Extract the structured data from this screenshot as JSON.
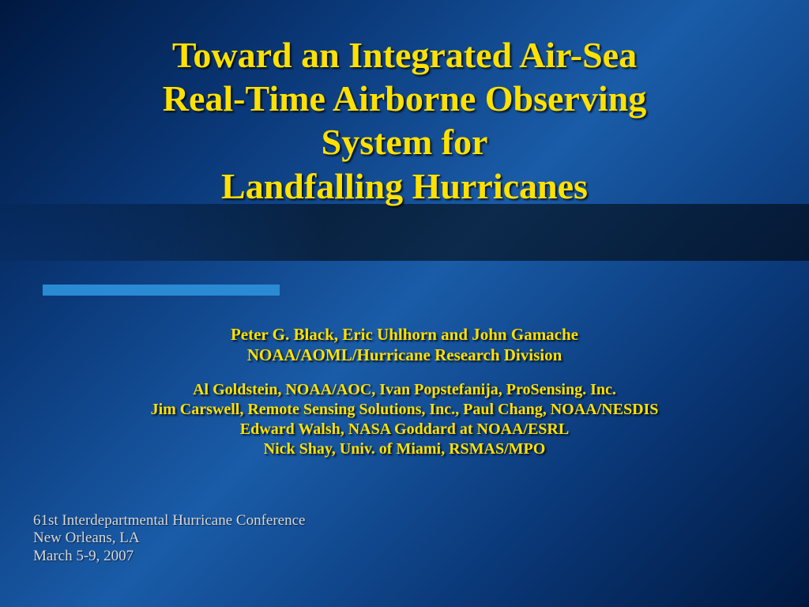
{
  "title": {
    "line1": "Toward an Integrated Air-Sea",
    "line2": "Real-Time Airborne Observing",
    "line3": "System for",
    "line4": "Landfalling Hurricanes"
  },
  "authors": {
    "group1_line1": "Peter G. Black, Eric Uhlhorn and John Gamache",
    "group1_line2": "NOAA/AOML/Hurricane Research Division",
    "group2_line1": "Al Goldstein, NOAA/AOC, Ivan Popstefanija, ProSensing. Inc.",
    "group2_line2": "Jim Carswell, Remote Sensing Solutions, Inc., Paul Chang, NOAA/NESDIS",
    "group2_line3": "Edward Walsh, NASA Goddard at NOAA/ESRL",
    "group2_line4": "Nick Shay, Univ. of Miami, RSMAS/MPO"
  },
  "footer": {
    "line1": "61st Interdepartmental Hurricane Conference",
    "line2": "New Orleans, LA",
    "line3": "March 5-9, 2007"
  },
  "style": {
    "title_color": "#ffe100",
    "title_fontsize_pt": 34,
    "authors_color": "#ffe100",
    "authors_fontsize_pt": 16,
    "footer_color": "#d8d8d8",
    "footer_fontsize_pt": 14,
    "accent_bar_color": "#2a8ad4",
    "background_gradient": [
      "#001840",
      "#0a3878",
      "#1a5ca8",
      "#0a3878",
      "#001840"
    ],
    "dark_band_opacity": 0.55,
    "font_family": "Times New Roman"
  }
}
